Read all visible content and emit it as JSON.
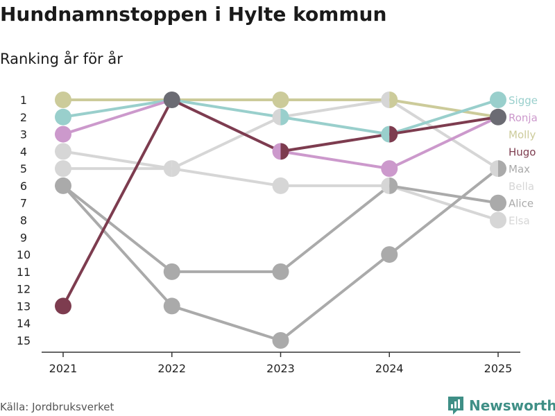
{
  "title": "Hundnamnstoppen i Hylte kommun",
  "subtitle": "Ranking år för år",
  "source": "Källa: Jordbruksverket",
  "brand": "Newsworthy",
  "chart_data": {
    "type": "line",
    "title": "Hundnamnstoppen i Hylte kommun",
    "subtitle": "Ranking år för år",
    "xlabel": "",
    "ylabel": "",
    "categories": [
      "2021",
      "2022",
      "2023",
      "2024",
      "2025"
    ],
    "y_ticks": [
      "1",
      "2",
      "3",
      "4",
      "5",
      "6",
      "7",
      "8",
      "9",
      "10",
      "11",
      "12",
      "13",
      "14",
      "15"
    ],
    "ylim": [
      1,
      15
    ],
    "y_reversed": true,
    "series": [
      {
        "name": "Elsa",
        "color": "#d6d6d6",
        "values": [
          4,
          5,
          2,
          1,
          5
        ]
      },
      {
        "name": "Bella",
        "color": "#d6d6d6",
        "values": [
          5,
          5,
          6,
          6,
          8
        ]
      },
      {
        "name": "Alice",
        "color": "#aaaaaa",
        "values": [
          6,
          11,
          11,
          6,
          7
        ]
      },
      {
        "name": "Max",
        "color": "#aaaaaa",
        "values": [
          6,
          13,
          15,
          10,
          5
        ]
      },
      {
        "name": "Molly",
        "color": "#cccb9a",
        "values": [
          1,
          1,
          1,
          1,
          2
        ]
      },
      {
        "name": "Sigge",
        "color": "#99cfcc",
        "values": [
          2,
          1,
          2,
          3,
          1
        ]
      },
      {
        "name": "Ronja",
        "color": "#cc99cc",
        "values": [
          3,
          1,
          4,
          5,
          2
        ]
      },
      {
        "name": "Hugo",
        "color": "#7d3c4f",
        "values": [
          13,
          1,
          4,
          3,
          2
        ]
      }
    ],
    "shared_point_color": "#6b6b73",
    "legend": [
      {
        "name": "Sigge",
        "color": "#99cfcc"
      },
      {
        "name": "Ronja",
        "color": "#cc99cc"
      },
      {
        "name": "Molly",
        "color": "#cccb9a"
      },
      {
        "name": "Hugo",
        "color": "#7d3c4f"
      },
      {
        "name": "Max",
        "color": "#aaaaaa"
      },
      {
        "name": "Bella",
        "color": "#d6d6d6"
      },
      {
        "name": "Alice",
        "color": "#aaaaaa"
      },
      {
        "name": "Elsa",
        "color": "#d6d6d6"
      }
    ],
    "legend_position": "right"
  }
}
